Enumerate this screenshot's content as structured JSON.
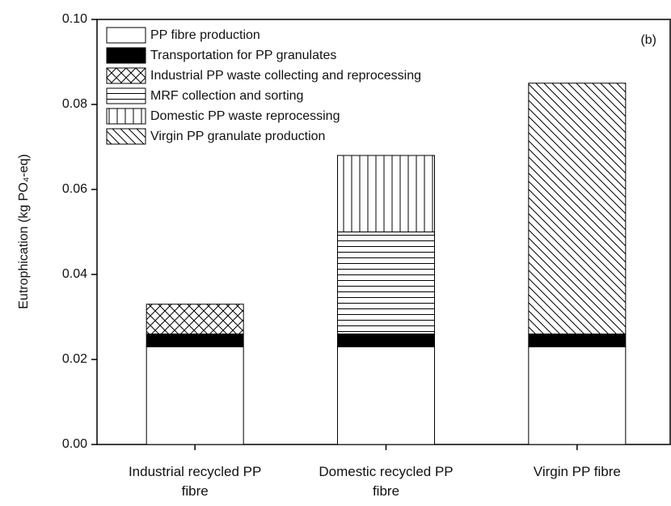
{
  "chart_data": {
    "type": "stacked_bar",
    "y_label": "Eutrophication (kg PO₄-eq)",
    "annotation": "(b)",
    "categories": [
      "Industrial recycled PP fibre",
      "Domestic recycled PP fibre",
      "Virgin PP fibre"
    ],
    "series": [
      {
        "name": "PP fibre production",
        "color": "#ffffff",
        "values": [
          0.023,
          0.023,
          0.023
        ]
      },
      {
        "name": "Transportation for PP granulates",
        "color": "#000000",
        "values": [
          0.003,
          0.003,
          0.003
        ]
      },
      {
        "name": "Industrial PP waste collecting and reprocessing",
        "color": "#000000",
        "values": [
          0.007,
          null,
          null
        ]
      },
      {
        "name": "MRF collection and sorting",
        "color": "#000000",
        "values": [
          null,
          0.024,
          null
        ]
      },
      {
        "name": "Domestic PP waste reprocessing",
        "color": "#000000",
        "values": [
          null,
          0.018,
          null
        ]
      },
      {
        "name": "Virgin PP granulate production",
        "color": "#000000",
        "values": [
          null,
          null,
          0.059
        ]
      }
    ],
    "ylim": [
      0,
      0.1
    ],
    "yticks": [
      {
        "value": 0,
        "label": "0.00"
      },
      0.02,
      0.04,
      0.06,
      0.08,
      {
        "value": 0.1,
        "label": "0.10"
      }
    ],
    "legend": "upper left"
  }
}
